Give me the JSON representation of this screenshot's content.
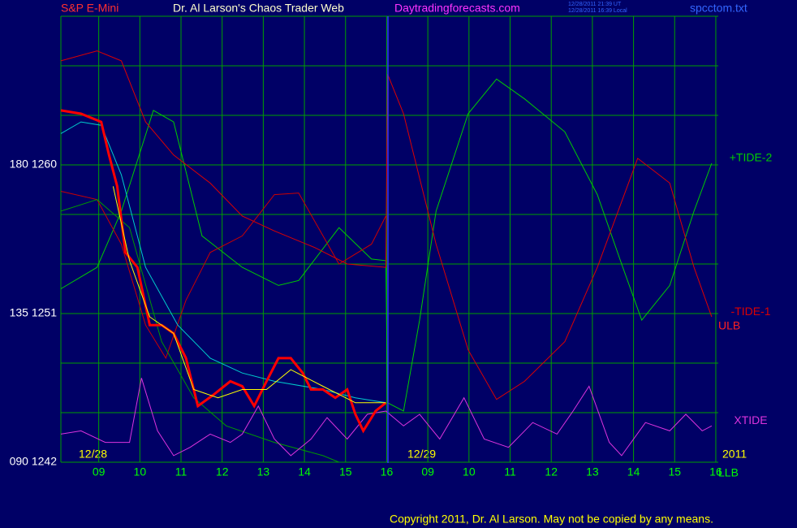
{
  "chart_data": {
    "type": "line",
    "title": "Dr. Al Larson's Chaos Trader Web",
    "subtitle": "S&P E-Mini",
    "site": "Daytradingforecasts.com",
    "file": "spcctom.txt",
    "timestamps": [
      "12/28/2011 21:39 UT",
      "12/28/2011 16:39 Local"
    ],
    "dates": [
      "12/28",
      "12/29",
      "2011"
    ],
    "annotations": [
      "ULB",
      "LLB"
    ],
    "copyright": "Copyright 2011, Dr. Al Larson. May not be copied by any means.",
    "xlim": [
      0.08,
      16.06
    ],
    "xticks": [
      {
        "value": 1,
        "label": "09"
      },
      {
        "value": 2,
        "label": "10"
      },
      {
        "value": 3,
        "label": "11"
      },
      {
        "value": 4,
        "label": "12"
      },
      {
        "value": 5,
        "label": "13"
      },
      {
        "value": 6,
        "label": "14"
      },
      {
        "value": 7,
        "label": "15"
      },
      {
        "value": 8,
        "label": "16"
      },
      {
        "value": 9,
        "label": "09"
      },
      {
        "value": 10,
        "label": "10"
      },
      {
        "value": 11,
        "label": "11"
      },
      {
        "value": 12,
        "label": "12"
      },
      {
        "value": 13,
        "label": "13"
      },
      {
        "value": 14,
        "label": "14"
      },
      {
        "value": 15,
        "label": "15"
      },
      {
        "value": 16,
        "label": "16"
      }
    ],
    "ylim": [
      1242,
      1269
    ],
    "yticks": [
      {
        "value": 1242,
        "label": "090 1242"
      },
      {
        "value": 1251,
        "label": "135 1251"
      },
      {
        "value": 1260,
        "label": "180 1260"
      }
    ],
    "ygrid": [
      1242,
      1245,
      1248,
      1251,
      1254,
      1257,
      1260,
      1263,
      1266,
      1269
    ],
    "grid": true,
    "series": [
      {
        "name": "+TIDE-2",
        "color": "#00cc00",
        "x": [
          0.08,
          0.96,
          1.55,
          2.33,
          2.82,
          3.51,
          4.49,
          5.37,
          5.86,
          6.84,
          7.63,
          7.98,
          8.02,
          8.41,
          8.8,
          9.2,
          9.98,
          10.67,
          11.35,
          12.33,
          13.12,
          13.71,
          14.2,
          14.88,
          15.47,
          15.9
        ],
        "values": [
          1252.5,
          1253.8,
          1257.2,
          1263.3,
          1262.6,
          1255.7,
          1253.8,
          1252.7,
          1253.0,
          1256.2,
          1254.3,
          1254.2,
          1245.6,
          1245.1,
          1250.6,
          1257.2,
          1263.1,
          1265.2,
          1264.0,
          1262.0,
          1258.2,
          1254.0,
          1250.6,
          1252.7,
          1257.2,
          1260.1
        ]
      },
      {
        "name": "-TIDE-1",
        "color": "#dd0000",
        "x": [
          0.08,
          0.96,
          1.55,
          2.14,
          2.82,
          3.71,
          4.49,
          5.27,
          6.25,
          7.04,
          7.98,
          8.02,
          8.41,
          9.2,
          9.98,
          10.67,
          11.35,
          12.33,
          13.12,
          14.1,
          14.88,
          15.47,
          15.9
        ],
        "values": [
          1266.3,
          1266.9,
          1266.3,
          1262.6,
          1260.6,
          1258.9,
          1256.9,
          1256.0,
          1255.0,
          1254.0,
          1253.8,
          1265.5,
          1263.1,
          1255.2,
          1248.8,
          1245.8,
          1246.9,
          1249.3,
          1253.8,
          1260.4,
          1258.9,
          1253.8,
          1250.8
        ]
      },
      {
        "color": "#cc0000",
        "x": [
          0.08,
          0.96,
          1.55,
          2.14,
          2.63,
          3.12,
          3.71,
          4.49,
          5.27,
          5.86,
          6.84,
          7.63,
          7.98
        ],
        "values": [
          1258.4,
          1257.9,
          1255.2,
          1250.3,
          1248.3,
          1251.8,
          1254.7,
          1255.7,
          1258.2,
          1258.3,
          1254.0,
          1255.2,
          1256.9
        ]
      },
      {
        "color": "#00cccc",
        "x": [
          0.08,
          0.57,
          1.06,
          1.55,
          2.14,
          2.92,
          3.71,
          4.49,
          5.27,
          6.45,
          7.24,
          7.98
        ],
        "values": [
          1261.9,
          1262.6,
          1262.4,
          1259.4,
          1253.8,
          1250.3,
          1248.3,
          1247.4,
          1246.9,
          1246.4,
          1245.9,
          1245.6
        ]
      },
      {
        "color": "#009900",
        "x": [
          0.08,
          0.96,
          1.75,
          2.53,
          3.31,
          4.1,
          5.27,
          6.45,
          6.84
        ],
        "values": [
          1257.2,
          1257.9,
          1256.2,
          1249.3,
          1245.9,
          1244.2,
          1243.2,
          1242.4,
          1242.0
        ]
      },
      {
        "name": "XTIDE",
        "color": "#dd33dd",
        "x": [
          0.08,
          0.57,
          1.16,
          1.75,
          2.04,
          2.43,
          2.82,
          3.22,
          3.71,
          4.2,
          4.49,
          4.88,
          5.27,
          5.67,
          6.16,
          6.55,
          7.04,
          7.53,
          7.98,
          8.41,
          8.8,
          9.29,
          9.88,
          10.37,
          10.96,
          11.55,
          12.14,
          12.53,
          12.92,
          13.41,
          13.71,
          14.29,
          14.88,
          15.27,
          15.67,
          15.9
        ],
        "values": [
          1243.7,
          1243.9,
          1243.2,
          1243.2,
          1247.1,
          1243.9,
          1242.4,
          1242.9,
          1243.7,
          1243.2,
          1243.7,
          1245.4,
          1243.4,
          1242.4,
          1243.4,
          1244.7,
          1243.4,
          1244.9,
          1245.1,
          1244.2,
          1244.9,
          1243.4,
          1245.9,
          1243.4,
          1242.9,
          1244.4,
          1243.7,
          1245.1,
          1246.6,
          1243.2,
          1242.4,
          1244.4,
          1243.9,
          1244.9,
          1243.9,
          1244.2
        ]
      },
      {
        "color": "#ff0000",
        "x": [
          0.08,
          0.57,
          1.06,
          1.25,
          1.45,
          1.65,
          1.94,
          2.24,
          2.53,
          2.82,
          3.12,
          3.41,
          3.8,
          4.2,
          4.49,
          4.78,
          5.08,
          5.37,
          5.67,
          5.96,
          6.16,
          6.45,
          6.75,
          7.04,
          7.24,
          7.43,
          7.73,
          7.98
        ],
        "values": [
          1263.3,
          1263.1,
          1262.6,
          1260.6,
          1258.7,
          1254.7,
          1253.8,
          1250.3,
          1250.3,
          1249.8,
          1248.3,
          1245.4,
          1246.1,
          1246.9,
          1246.6,
          1245.4,
          1246.9,
          1248.3,
          1248.3,
          1247.4,
          1246.4,
          1246.4,
          1245.9,
          1246.4,
          1244.9,
          1243.9,
          1245.1,
          1245.6
        ]
      },
      {
        "color": "#ffff00",
        "x": [
          1.35,
          1.75,
          2.24,
          2.82,
          3.31,
          3.9,
          4.49,
          5.08,
          5.67,
          6.45,
          7.24,
          7.98
        ],
        "values": [
          1258.7,
          1254.2,
          1250.8,
          1249.8,
          1246.4,
          1245.9,
          1246.4,
          1246.4,
          1247.6,
          1246.6,
          1245.6,
          1245.6
        ]
      }
    ]
  }
}
